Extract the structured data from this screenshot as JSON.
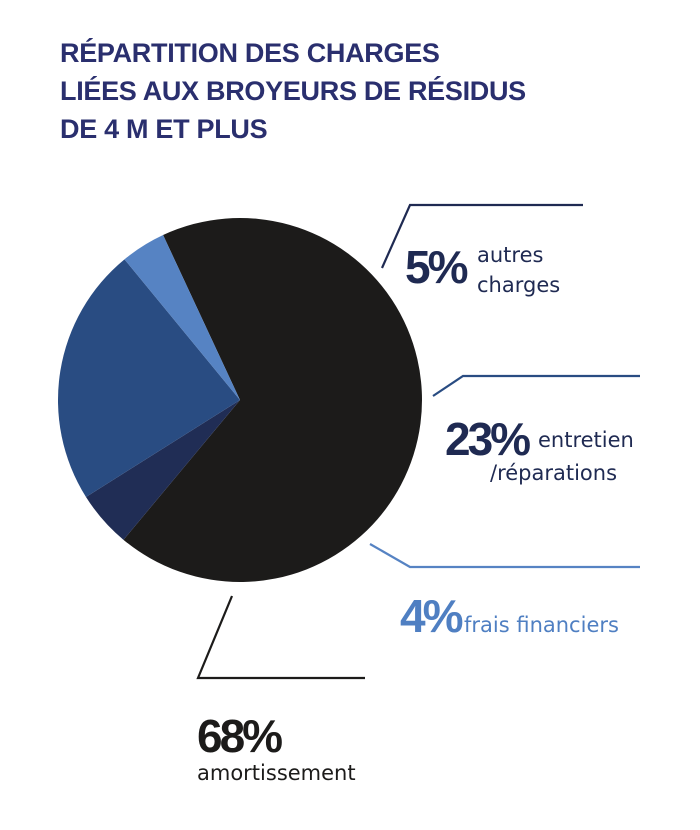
{
  "chart_data": {
    "type": "pie",
    "title_lines": [
      "RÉPARTITION DES CHARGES",
      "LIÉES AUX BROYEURS DE RÉSIDUS",
      "DE 4 M ET PLUS"
    ],
    "slices": [
      {
        "value": 68,
        "percent_label": "68%",
        "label_lines": [
          "amortissement"
        ],
        "color": "#1c1b1a",
        "text_color": "#1c1b1a",
        "line_color": "#1c1b1a"
      },
      {
        "value": 5,
        "percent_label": "5%",
        "label_lines": [
          "autres",
          "charges"
        ],
        "color": "#202d55",
        "text_color": "#1f2a52",
        "line_color": "#1f2a52"
      },
      {
        "value": 23,
        "percent_label": "23%",
        "label_lines": [
          "entretien",
          "/réparations"
        ],
        "color": "#294c82",
        "text_color": "#1f2a52",
        "line_color": "#294c82"
      },
      {
        "value": 4,
        "percent_label": "4%",
        "label_lines": [
          "frais financiers"
        ],
        "color": "#5683c3",
        "text_color": "#4f7fc2",
        "line_color": "#5683c3"
      }
    ]
  }
}
